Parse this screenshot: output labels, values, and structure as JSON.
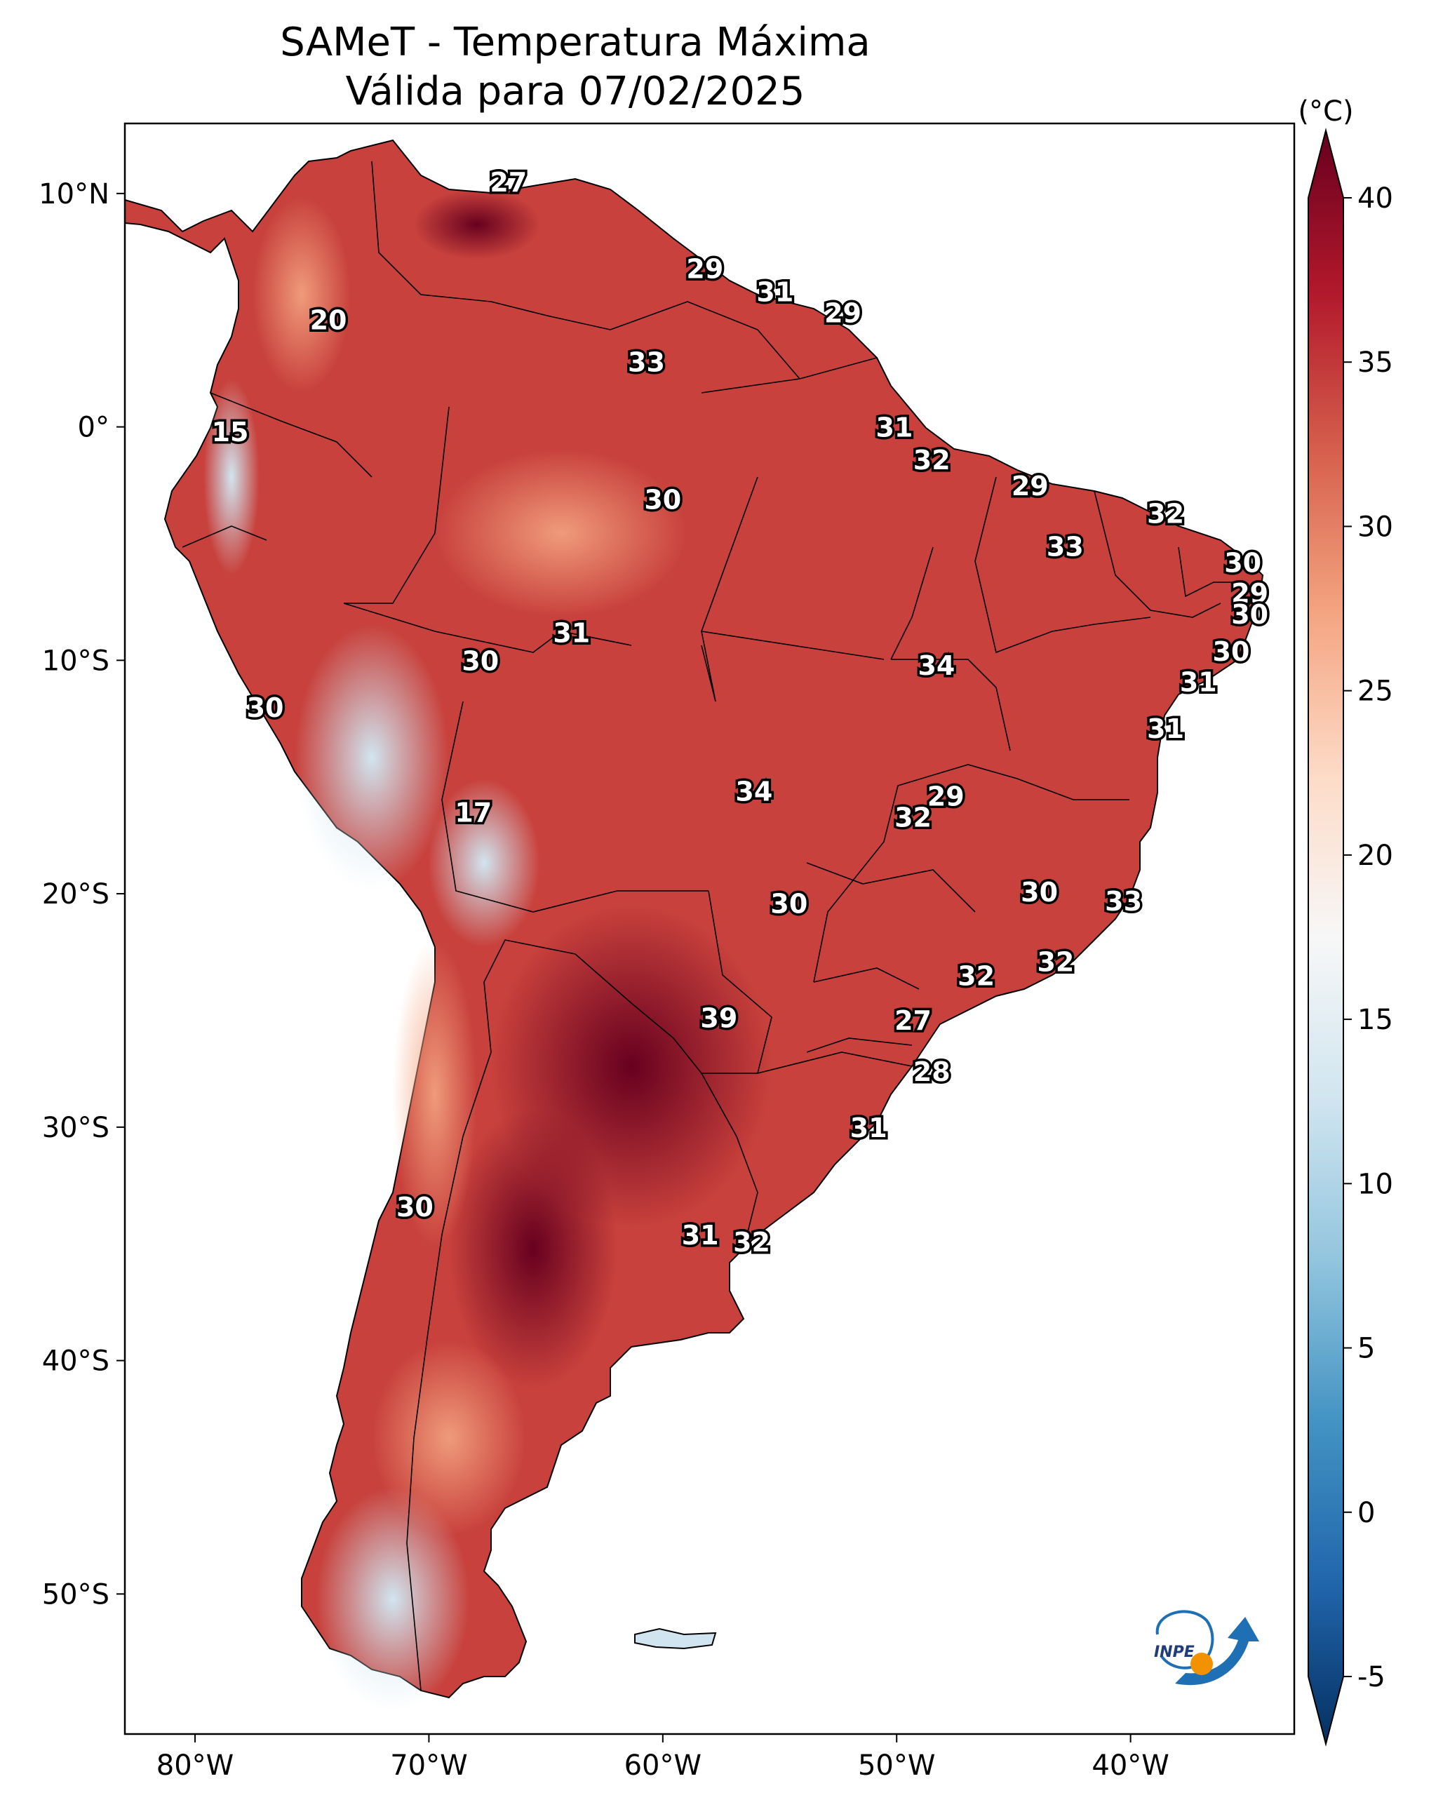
{
  "title": {
    "line1": "SAMeT - Temperatura Máxima",
    "line2": "Válida para 07/02/2025"
  },
  "map": {
    "lon_range": [
      -83,
      -33
    ],
    "lat_range": [
      -56,
      13
    ],
    "lon_ticks": [
      "80°W",
      "70°W",
      "60°W",
      "50°W",
      "40°W"
    ],
    "lon_tick_values": [
      -80,
      -70,
      -60,
      -50,
      -40
    ],
    "lat_ticks": [
      "10°N",
      "0°",
      "10°S",
      "20°S",
      "30°S",
      "40°S",
      "50°S"
    ],
    "lat_tick_values": [
      10,
      0,
      -10,
      -20,
      -30,
      -40,
      -50
    ],
    "land_color": "#c8413c",
    "ocean_color": "#ffffff",
    "border_color": "#000000",
    "logo": {
      "name": "inpe-logo",
      "text": "INPE",
      "colors": [
        "#1f6fb5",
        "#f39200"
      ]
    }
  },
  "colorbar": {
    "unit": "(°C)",
    "ticks": [
      "40",
      "35",
      "30",
      "25",
      "20",
      "15",
      "10",
      "5",
      "0",
      "-5"
    ],
    "tick_values": [
      40,
      35,
      30,
      25,
      20,
      15,
      10,
      5,
      0,
      -5
    ],
    "range": [
      -5,
      40
    ],
    "colors": [
      "#053061",
      "#2166ac",
      "#4393c3",
      "#92c5de",
      "#d1e5f0",
      "#f7f7f7",
      "#fddbc7",
      "#f4a582",
      "#d6604d",
      "#b2182b",
      "#67001f"
    ]
  },
  "city_labels": [
    {
      "v": "27",
      "lon": -66.6,
      "lat": 10.5
    },
    {
      "v": "20",
      "lon": -74.3,
      "lat": 4.6
    },
    {
      "v": "15",
      "lon": -78.5,
      "lat": -0.2
    },
    {
      "v": "29",
      "lon": -58.2,
      "lat": 6.8
    },
    {
      "v": "31",
      "lon": -55.2,
      "lat": 5.8
    },
    {
      "v": "29",
      "lon": -52.3,
      "lat": 4.9
    },
    {
      "v": "33",
      "lon": -60.7,
      "lat": 2.8
    },
    {
      "v": "31",
      "lon": -50.1,
      "lat": 0.0
    },
    {
      "v": "32",
      "lon": -48.5,
      "lat": -1.4
    },
    {
      "v": "29",
      "lon": -44.3,
      "lat": -2.5
    },
    {
      "v": "30",
      "lon": -60.0,
      "lat": -3.1
    },
    {
      "v": "32",
      "lon": -38.5,
      "lat": -3.7
    },
    {
      "v": "33",
      "lon": -42.8,
      "lat": -5.1
    },
    {
      "v": "30",
      "lon": -35.2,
      "lat": -5.8
    },
    {
      "v": "29",
      "lon": -34.9,
      "lat": -7.1
    },
    {
      "v": "30",
      "lon": -34.9,
      "lat": -8.0
    },
    {
      "v": "30",
      "lon": -35.7,
      "lat": -9.6
    },
    {
      "v": "31",
      "lon": -37.1,
      "lat": -10.9
    },
    {
      "v": "31",
      "lon": -38.5,
      "lat": -12.9
    },
    {
      "v": "31",
      "lon": -63.9,
      "lat": -8.8
    },
    {
      "v": "30",
      "lon": -67.8,
      "lat": -10.0
    },
    {
      "v": "34",
      "lon": -48.3,
      "lat": -10.2
    },
    {
      "v": "30",
      "lon": -77.0,
      "lat": -12.0
    },
    {
      "v": "34",
      "lon": -56.1,
      "lat": -15.6
    },
    {
      "v": "29",
      "lon": -47.9,
      "lat": -15.8
    },
    {
      "v": "32",
      "lon": -49.3,
      "lat": -16.7
    },
    {
      "v": "17",
      "lon": -68.1,
      "lat": -16.5
    },
    {
      "v": "30",
      "lon": -54.6,
      "lat": -20.4
    },
    {
      "v": "30",
      "lon": -43.9,
      "lat": -19.9
    },
    {
      "v": "33",
      "lon": -40.3,
      "lat": -20.3
    },
    {
      "v": "32",
      "lon": -43.2,
      "lat": -22.9
    },
    {
      "v": "32",
      "lon": -46.6,
      "lat": -23.5
    },
    {
      "v": "39",
      "lon": -57.6,
      "lat": -25.3
    },
    {
      "v": "27",
      "lon": -49.3,
      "lat": -25.4
    },
    {
      "v": "28",
      "lon": -48.5,
      "lat": -27.6
    },
    {
      "v": "31",
      "lon": -51.2,
      "lat": -30.0
    },
    {
      "v": "30",
      "lon": -70.6,
      "lat": -33.4
    },
    {
      "v": "31",
      "lon": -58.4,
      "lat": -34.6
    },
    {
      "v": "32",
      "lon": -56.2,
      "lat": -34.9
    }
  ]
}
